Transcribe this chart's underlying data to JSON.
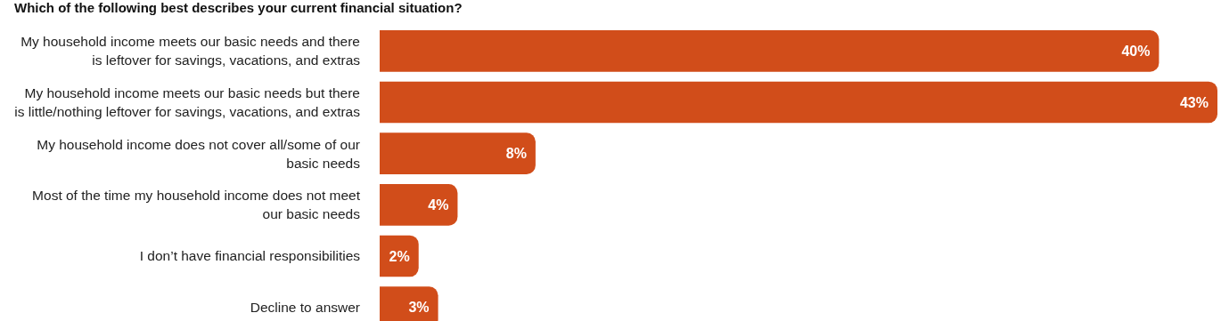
{
  "chart_data": {
    "type": "bar",
    "orientation": "horizontal",
    "title": "Which of the following best describes your current financial situation?",
    "categories": [
      "My household income meets our basic needs and there is leftover for savings, vacations, and extras",
      "My household income meets our basic needs but there is little/nothing leftover for savings, vacations, and extras",
      "My household income does not cover all/some of our basic needs",
      "Most of the time my household income does not meet our basic needs",
      "I don’t have financial responsibilities",
      "Decline to answer"
    ],
    "values": [
      40,
      43,
      8,
      4,
      2,
      3
    ],
    "value_labels": [
      "40%",
      "43%",
      "8%",
      "4%",
      "2%",
      "3%"
    ],
    "color": "#d14d1a"
  }
}
